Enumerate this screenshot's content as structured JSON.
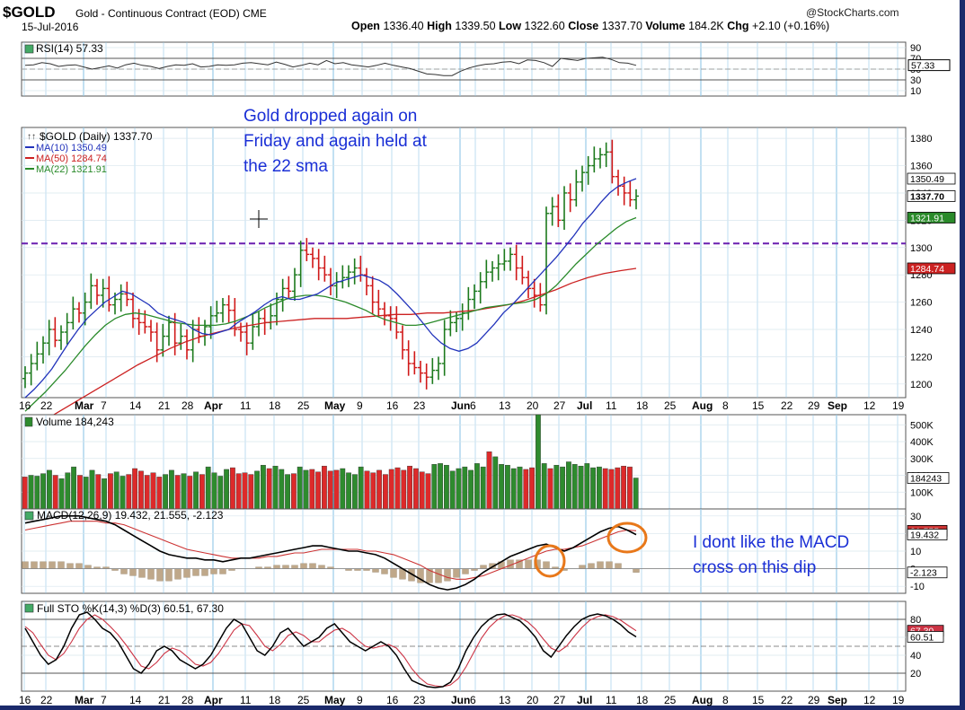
{
  "header": {
    "symbol": "$GOLD",
    "name": "Gold - Continuous Contract (EOD)",
    "exchange": "CME",
    "date": "15-Jul-2016",
    "source": "@StockCharts.com",
    "open_label": "Open",
    "open": "1336.40",
    "high_label": "High",
    "high": "1339.50",
    "low_label": "Low",
    "low": "1322.60",
    "close_label": "Close",
    "close": "1337.70",
    "volume_label": "Volume",
    "volume": "184.2K",
    "chg_label": "Chg",
    "chg": "+2.10 (+0.16%)"
  },
  "annotations": {
    "gold_note_lines": [
      "Gold dropped again on",
      "Friday and again held at",
      "the 22 sma"
    ],
    "macd_note_lines": [
      "I dont like the MACD",
      "cross on this dip"
    ]
  },
  "colors": {
    "price_up": "#1c7a1c",
    "price_down": "#d01818",
    "ma10": "#2233bb",
    "ma50": "#cc2222",
    "ma22": "#2a8a2a",
    "vol_up": "#2e8b2e",
    "vol_down": "#dd2a2a",
    "macd": "#000000",
    "signal": "#cc3333",
    "hist": "#bfa88a",
    "grid": "#8fc6e6",
    "support": "#6a1fb0",
    "annotation": "#1a2fd6",
    "circle": "#e8781a"
  },
  "chart_data": [
    {
      "type": "line",
      "panel": "rsi",
      "title": "RSI(14) 57.33",
      "yticks": [
        "90",
        "70",
        "50",
        "30",
        "10"
      ],
      "ylim": [
        0,
        100
      ],
      "last_label": "57.33",
      "values": [
        57,
        58,
        62,
        60,
        55,
        57,
        58,
        54,
        50,
        53,
        56,
        52,
        58,
        61,
        57,
        55,
        51,
        55,
        58,
        57,
        60,
        54,
        55,
        58,
        57,
        58,
        61,
        62,
        60,
        58,
        63,
        59,
        54,
        57,
        61,
        58,
        66,
        60,
        62,
        58,
        56,
        54,
        57,
        61,
        57,
        54,
        51,
        46,
        41,
        40,
        38,
        38,
        46,
        52,
        56,
        59,
        60,
        63,
        64,
        60,
        67,
        66,
        62,
        55,
        70,
        68,
        66,
        70,
        71,
        72,
        68,
        62,
        61,
        57
      ]
    },
    {
      "type": "bar",
      "panel": "price",
      "title": "$GOLD (Daily) 1337.70",
      "legend": [
        {
          "name": "MA(10) 1350.49"
        },
        {
          "name": "MA(50) 1284.74"
        },
        {
          "name": "MA(22) 1321.91"
        }
      ],
      "yticks": [
        "1380",
        "1360",
        "1340",
        "1320",
        "1300",
        "1280",
        "1260",
        "1240",
        "1220",
        "1200"
      ],
      "ylim": [
        1190,
        1388
      ],
      "support_line": 1303,
      "right_labels": [
        "1350.49",
        "1337.70",
        "1321.91",
        "1284.74"
      ],
      "xticks": [
        "16",
        "22",
        "Mar",
        "7",
        "14",
        "21",
        "28",
        "Apr",
        "11",
        "18",
        "25",
        "May",
        "9",
        "16",
        "23",
        "Jun",
        "6",
        "13",
        "20",
        "27",
        "Jul",
        "11",
        "18",
        "25",
        "Aug",
        "8",
        "15",
        "22",
        "29",
        "Sep",
        "12",
        "19"
      ],
      "close": [
        1208,
        1215,
        1222,
        1230,
        1240,
        1232,
        1238,
        1245,
        1255,
        1252,
        1260,
        1272,
        1265,
        1270,
        1258,
        1262,
        1266,
        1262,
        1248,
        1245,
        1242,
        1238,
        1225,
        1235,
        1245,
        1230,
        1235,
        1225,
        1240,
        1235,
        1242,
        1250,
        1252,
        1258,
        1254,
        1240,
        1238,
        1230,
        1242,
        1248,
        1245,
        1250,
        1262,
        1270,
        1268,
        1280,
        1298,
        1295,
        1292,
        1285,
        1280,
        1272,
        1275,
        1278,
        1282,
        1285,
        1280,
        1272,
        1260,
        1255,
        1250,
        1248,
        1238,
        1225,
        1215,
        1212,
        1208,
        1205,
        1210,
        1215,
        1240,
        1245,
        1248,
        1252,
        1262,
        1268,
        1275,
        1282,
        1285,
        1288,
        1290,
        1295,
        1285,
        1278,
        1270,
        1265,
        1258,
        1325,
        1330,
        1320,
        1340,
        1335,
        1348,
        1355,
        1360,
        1365,
        1368,
        1370,
        1352,
        1345,
        1340,
        1335,
        1337.7
      ],
      "ma10": [
        1190,
        1196,
        1203,
        1211,
        1221,
        1231,
        1240,
        1248,
        1254,
        1260,
        1264,
        1268,
        1266,
        1262,
        1258,
        1252,
        1249,
        1247,
        1245,
        1240,
        1237,
        1236,
        1238,
        1240,
        1245,
        1249,
        1253,
        1258,
        1262,
        1264,
        1262,
        1262,
        1264,
        1266,
        1270,
        1274,
        1276,
        1278,
        1280,
        1278,
        1276,
        1272,
        1266,
        1259,
        1252,
        1244,
        1236,
        1230,
        1226,
        1224,
        1226,
        1230,
        1237,
        1244,
        1252,
        1258,
        1265,
        1272,
        1279,
        1286,
        1293,
        1301,
        1309,
        1318,
        1325,
        1333,
        1340,
        1345,
        1348,
        1350.5
      ],
      "ma22": [
        1180,
        1187,
        1194,
        1202,
        1210,
        1219,
        1228,
        1236,
        1243,
        1248,
        1251,
        1252,
        1251,
        1249,
        1247,
        1245,
        1244,
        1243,
        1243,
        1243,
        1244,
        1246,
        1249,
        1252,
        1256,
        1259,
        1262,
        1264,
        1265,
        1265,
        1264,
        1262,
        1260,
        1257,
        1254,
        1250,
        1247,
        1245,
        1243,
        1243,
        1244,
        1246,
        1248,
        1250,
        1252,
        1254,
        1256,
        1257,
        1258,
        1259,
        1260,
        1262,
        1266,
        1272,
        1280,
        1288,
        1295,
        1302,
        1308,
        1314,
        1319,
        1321.9
      ],
      "ma50": [
        1166,
        1172,
        1179,
        1186,
        1193,
        1200,
        1207,
        1214,
        1220,
        1226,
        1231,
        1235,
        1238,
        1241,
        1243,
        1245,
        1246,
        1247,
        1248,
        1248,
        1248,
        1249,
        1250,
        1251,
        1251,
        1252,
        1252,
        1253,
        1254,
        1256,
        1258,
        1261,
        1265,
        1269,
        1274,
        1278,
        1281,
        1283,
        1284.7
      ]
    },
    {
      "type": "bar",
      "panel": "volume",
      "title": "Volume 184,243",
      "yticks": [
        "500K",
        "400K",
        "300K",
        "200K",
        "100K"
      ],
      "ylim": [
        0,
        560
      ],
      "unit": "K",
      "last_label": "184243",
      "values": [
        190,
        200,
        195,
        210,
        230,
        200,
        180,
        215,
        250,
        200,
        190,
        230,
        205,
        180,
        210,
        220,
        195,
        205,
        240,
        225,
        200,
        215,
        190,
        205,
        230,
        200,
        210,
        195,
        220,
        205,
        250,
        215,
        195,
        235,
        245,
        210,
        215,
        205,
        225,
        260,
        240,
        255,
        235,
        205,
        210,
        250,
        230,
        235,
        220,
        255,
        225,
        230,
        240,
        215,
        205,
        250,
        225,
        215,
        230,
        205,
        235,
        245,
        230,
        255,
        240,
        220,
        210,
        265,
        270,
        260,
        225,
        240,
        250,
        230,
        270,
        250,
        340,
        310,
        265,
        260,
        240,
        250,
        235,
        245,
        560,
        270,
        240,
        260,
        250,
        280,
        265,
        255,
        270,
        245,
        250,
        240,
        235,
        245,
        255,
        250,
        184
      ],
      "up": [
        0,
        1,
        1,
        1,
        1,
        0,
        1,
        1,
        1,
        0,
        1,
        1,
        0,
        1,
        0,
        1,
        1,
        0,
        0,
        0,
        0,
        0,
        0,
        1,
        1,
        0,
        1,
        0,
        1,
        0,
        1,
        1,
        1,
        1,
        0,
        0,
        0,
        0,
        1,
        1,
        0,
        1,
        1,
        1,
        0,
        1,
        1,
        0,
        0,
        0,
        0,
        0,
        1,
        1,
        1,
        1,
        0,
        0,
        0,
        0,
        0,
        0,
        0,
        0,
        0,
        0,
        0,
        1,
        1,
        1,
        1,
        1,
        1,
        1,
        1,
        1,
        0,
        1,
        1,
        1,
        1,
        1,
        0,
        0,
        1,
        1,
        0,
        1,
        1,
        1,
        1,
        1,
        1,
        1,
        1,
        0,
        0,
        0,
        0,
        0,
        1
      ]
    },
    {
      "type": "line",
      "panel": "macd",
      "title": "MACD(12,26,9) 19.432, 21.555, -2.123",
      "yticks": [
        "30",
        "20",
        "10",
        "0",
        "-10"
      ],
      "ylim": [
        -14,
        34
      ],
      "right_labels": [
        "21.555",
        "19.432",
        "-2.123"
      ],
      "macd": [
        26,
        27,
        28,
        29,
        30,
        30,
        30,
        29,
        28,
        27,
        25,
        22,
        19,
        16,
        13,
        10,
        8,
        7,
        6,
        6,
        5,
        5,
        4,
        5,
        6,
        6,
        7,
        8,
        9,
        10,
        11,
        12,
        13,
        13,
        12,
        11,
        10,
        10,
        9,
        8,
        6,
        3,
        0,
        -3,
        -6,
        -9,
        -11,
        -12,
        -11,
        -9,
        -6,
        -2,
        1,
        4,
        7,
        9,
        11,
        13,
        14,
        12,
        10,
        12,
        15,
        18,
        21,
        23,
        24,
        22,
        19.4
      ],
      "signal": [
        22,
        23,
        24,
        25,
        26,
        27,
        27,
        27,
        27,
        26,
        26,
        25,
        23,
        21,
        19,
        17,
        15,
        13,
        11,
        10,
        9,
        8,
        7,
        6,
        6,
        6,
        6,
        7,
        7,
        8,
        9,
        9,
        10,
        11,
        11,
        11,
        11,
        11,
        10,
        10,
        9,
        8,
        6,
        4,
        2,
        -1,
        -3,
        -5,
        -6,
        -6,
        -5,
        -4,
        -2,
        0,
        2,
        4,
        6,
        8,
        10,
        11,
        11,
        12,
        13,
        15,
        17,
        19,
        21,
        22,
        21.6
      ],
      "hist": [
        4,
        4,
        4,
        4,
        4,
        3,
        3,
        2,
        1,
        1,
        -1,
        -3,
        -4,
        -5,
        -6,
        -7,
        -7,
        -6,
        -5,
        -4,
        -4,
        -3,
        -3,
        -1,
        0,
        0,
        1,
        1,
        2,
        2,
        2,
        3,
        3,
        2,
        1,
        0,
        -1,
        -1,
        -1,
        -2,
        -3,
        -5,
        -6,
        -7,
        -8,
        -8,
        -8,
        -7,
        -5,
        -3,
        -1,
        2,
        3,
        4,
        5,
        5,
        5,
        5,
        4,
        1,
        -1,
        0,
        2,
        3,
        4,
        4,
        3,
        0,
        -2.1
      ]
    },
    {
      "type": "line",
      "panel": "stochastic",
      "title": "Full STO %K(14,3) %D(3) 60.51, 67.30",
      "yticks": [
        "80",
        "60",
        "40",
        "20"
      ],
      "ylim": [
        0,
        100
      ],
      "right_labels": [
        "67.30",
        "60.51"
      ],
      "k": [
        70,
        55,
        40,
        30,
        35,
        50,
        70,
        85,
        88,
        80,
        70,
        65,
        55,
        40,
        25,
        20,
        30,
        45,
        50,
        45,
        35,
        30,
        25,
        30,
        40,
        55,
        70,
        80,
        75,
        60,
        45,
        40,
        50,
        65,
        70,
        60,
        50,
        55,
        60,
        70,
        75,
        65,
        55,
        50,
        45,
        50,
        55,
        50,
        40,
        25,
        12,
        8,
        5,
        4,
        5,
        10,
        25,
        45,
        60,
        72,
        80,
        85,
        86,
        82,
        78,
        70,
        60,
        45,
        38,
        50,
        62,
        72,
        80,
        84,
        86,
        84,
        80,
        74,
        66,
        60.5
      ],
      "d": [
        72,
        65,
        52,
        40,
        35,
        42,
        55,
        70,
        80,
        85,
        80,
        72,
        63,
        52,
        40,
        28,
        25,
        32,
        42,
        48,
        45,
        38,
        30,
        28,
        32,
        42,
        55,
        68,
        75,
        73,
        62,
        50,
        45,
        52,
        62,
        66,
        62,
        55,
        55,
        62,
        68,
        70,
        65,
        57,
        50,
        48,
        50,
        52,
        48,
        38,
        25,
        15,
        8,
        6,
        5,
        7,
        14,
        27,
        43,
        59,
        71,
        79,
        84,
        85,
        82,
        77,
        69,
        58,
        48,
        44,
        50,
        61,
        71,
        79,
        83,
        85,
        83,
        79,
        73,
        67.3
      ]
    }
  ]
}
